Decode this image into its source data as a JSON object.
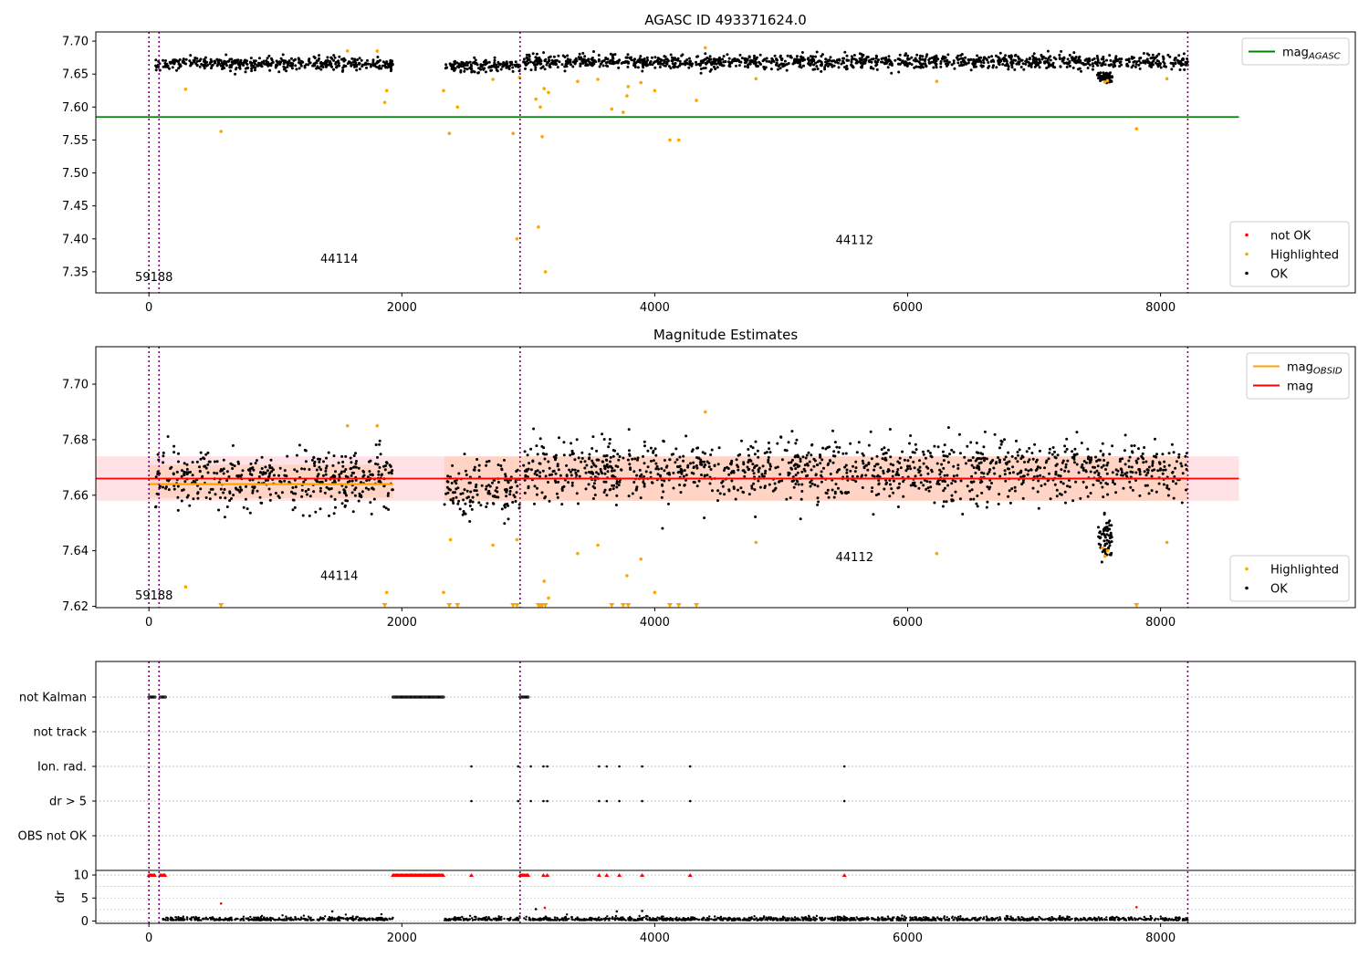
{
  "chart_data": [
    {
      "type": "scatter",
      "title": "AGASC ID 493371624.0",
      "xlim": [
        -420,
        9540
      ],
      "ylim": [
        7.318,
        7.714
      ],
      "x_ticks": [
        0,
        2000,
        4000,
        6000,
        8000
      ],
      "y_ticks": [
        7.35,
        7.4,
        7.45,
        7.5,
        7.55,
        7.6,
        7.65,
        7.7
      ],
      "obsid_boundaries": [
        0,
        80,
        2935,
        8215
      ],
      "obsid_labels": [
        {
          "text": "59188",
          "x": 40,
          "y": 7.336
        },
        {
          "text": "44114",
          "x": 1505,
          "y": 7.364
        },
        {
          "text": "44112",
          "x": 5580,
          "y": 7.392
        }
      ],
      "lines": [
        {
          "name": "mag",
          "subscript": "AGASC",
          "value": 7.585,
          "x_range": [
            -420,
            8620
          ],
          "color": "#008000"
        }
      ],
      "ok_segments": [
        {
          "x": [
            50,
            90
          ],
          "center": 7.665,
          "spread": 0.01
        },
        {
          "x": [
            110,
            1930
          ],
          "center": 7.666,
          "spread": 0.011
        },
        {
          "x": [
            2335,
            2935
          ],
          "center": 7.662,
          "spread": 0.011
        },
        {
          "x": [
            2960,
            8215
          ],
          "center": 7.669,
          "spread": 0.012
        }
      ],
      "dip": {
        "x": [
          7500,
          7620
        ],
        "center": 7.645
      },
      "highlighted_points": [
        [
          290,
          7.627
        ],
        [
          570,
          7.563
        ],
        [
          1570,
          7.685
        ],
        [
          1805,
          7.685
        ],
        [
          1865,
          7.607
        ],
        [
          1880,
          7.625
        ],
        [
          2330,
          7.625
        ],
        [
          2375,
          7.56
        ],
        [
          2440,
          7.6
        ],
        [
          2720,
          7.642
        ],
        [
          2880,
          7.56
        ],
        [
          2910,
          7.4
        ],
        [
          2930,
          7.645
        ],
        [
          3060,
          7.612
        ],
        [
          3080,
          7.418
        ],
        [
          3095,
          7.6
        ],
        [
          3110,
          7.555
        ],
        [
          3125,
          7.628
        ],
        [
          3135,
          7.35
        ],
        [
          3160,
          7.622
        ],
        [
          3390,
          7.639
        ],
        [
          3550,
          7.642
        ],
        [
          3660,
          7.597
        ],
        [
          3750,
          7.592
        ],
        [
          3780,
          7.617
        ],
        [
          3790,
          7.631
        ],
        [
          3890,
          7.637
        ],
        [
          4000,
          7.625
        ],
        [
          4120,
          7.55
        ],
        [
          4190,
          7.55
        ],
        [
          4330,
          7.61
        ],
        [
          4400,
          7.69
        ],
        [
          4800,
          7.643
        ],
        [
          6230,
          7.639
        ],
        [
          7560,
          7.638
        ],
        [
          7580,
          7.64
        ],
        [
          7810,
          7.567
        ],
        [
          8050,
          7.643
        ]
      ],
      "legends": [
        {
          "placement": "top-right",
          "entries": [
            {
              "label": "mag",
              "subscript": "AGASC",
              "color": "#008000",
              "kind": "line"
            }
          ]
        },
        {
          "placement": "bottom-right",
          "entries": [
            {
              "label": "not OK",
              "color": "#ff0000",
              "kind": "dot"
            },
            {
              "label": "Highlighted",
              "color": "#ffa500",
              "kind": "dot"
            },
            {
              "label": "OK",
              "color": "#000000",
              "kind": "dot"
            }
          ]
        }
      ]
    },
    {
      "type": "scatter",
      "title": "Magnitude Estimates",
      "xlim": [
        -420,
        9540
      ],
      "ylim": [
        7.6195,
        7.7135
      ],
      "x_ticks": [
        0,
        2000,
        4000,
        6000,
        8000
      ],
      "y_ticks": [
        7.62,
        7.64,
        7.66,
        7.68,
        7.7
      ],
      "obsid_boundaries": [
        0,
        80,
        2935,
        8215
      ],
      "obsid_labels": [
        {
          "text": "59188",
          "x": 40,
          "y": 7.6225
        },
        {
          "text": "44114",
          "x": 1505,
          "y": 7.6295
        },
        {
          "text": "44112",
          "x": 5580,
          "y": 7.6362
        }
      ],
      "bands": [
        {
          "x_range": [
            -420,
            8620
          ],
          "y_range": [
            7.658,
            7.674
          ],
          "color": "#ff8c96",
          "opacity": 0.25
        },
        {
          "x_range": [
            0,
            1930
          ],
          "y_range": [
            7.659,
            7.671
          ],
          "color": "#ffb070",
          "opacity": 0.28
        },
        {
          "x_range": [
            2335,
            8215
          ],
          "y_range": [
            7.658,
            7.674
          ],
          "color": "#ffb070",
          "opacity": 0.28
        }
      ],
      "lines": [
        {
          "name": "mag",
          "subscript": "OBSID",
          "value": 7.664,
          "x_range": [
            0,
            1930
          ],
          "color": "#ffa500"
        },
        {
          "name": "mag",
          "subscript": "OBSID",
          "value": 7.666,
          "x_range": [
            2335,
            8215
          ],
          "color": "#ffa500"
        },
        {
          "name": "mag",
          "value": 7.666,
          "x_range": [
            -420,
            8620
          ],
          "color": "#ff0000"
        }
      ],
      "ok_segments": [
        {
          "x": [
            50,
            90
          ],
          "center": 7.665,
          "spread": 0.01
        },
        {
          "x": [
            110,
            1930
          ],
          "center": 7.666,
          "spread": 0.011
        },
        {
          "x": [
            2335,
            2935
          ],
          "center": 7.662,
          "spread": 0.011
        },
        {
          "x": [
            2960,
            8215
          ],
          "center": 7.669,
          "spread": 0.012
        }
      ],
      "dip": {
        "x": [
          7500,
          7620
        ],
        "center": 7.645
      },
      "highlighted_points": [
        [
          290,
          7.627
        ],
        [
          1570,
          7.685
        ],
        [
          1805,
          7.685
        ],
        [
          1880,
          7.625
        ],
        [
          2330,
          7.625
        ],
        [
          2385,
          7.644
        ],
        [
          2720,
          7.642
        ],
        [
          2910,
          7.644
        ],
        [
          3125,
          7.629
        ],
        [
          3160,
          7.623
        ],
        [
          3390,
          7.639
        ],
        [
          3550,
          7.642
        ],
        [
          3780,
          7.631
        ],
        [
          3890,
          7.637
        ],
        [
          4000,
          7.625
        ],
        [
          4400,
          7.69
        ],
        [
          4800,
          7.643
        ],
        [
          6230,
          7.639
        ],
        [
          7540,
          7.641
        ],
        [
          7560,
          7.638
        ],
        [
          7580,
          7.64
        ],
        [
          8050,
          7.643
        ]
      ],
      "clipped_points_x": [
        570,
        1865,
        2375,
        2440,
        2880,
        2910,
        3080,
        3095,
        3110,
        3135,
        3660,
        3750,
        3790,
        4120,
        4190,
        4330,
        7810
      ],
      "legends": [
        {
          "placement": "top-right",
          "entries": [
            {
              "label": "mag",
              "subscript": "OBSID",
              "color": "#ffa500",
              "kind": "line"
            },
            {
              "label": "mag",
              "color": "#ff0000",
              "kind": "line"
            }
          ]
        },
        {
          "placement": "bottom-right",
          "entries": [
            {
              "label": "Highlighted",
              "color": "#ffa500",
              "kind": "dot"
            },
            {
              "label": "OK",
              "color": "#000000",
              "kind": "dot"
            }
          ]
        }
      ]
    },
    {
      "type": "scatter",
      "title": "",
      "xlim": [
        -420,
        9540
      ],
      "x_ticks": [
        0,
        2000,
        4000,
        6000,
        8000
      ],
      "obsid_boundaries": [
        0,
        80,
        2935,
        8215
      ],
      "flag_rows": [
        "not Kalman",
        "not track",
        "Ion. rad.",
        "dr > 5",
        "OBS not OK"
      ],
      "flag_ranges": {
        "not Kalman": [
          [
            0,
            50
          ],
          [
            90,
            130
          ],
          [
            1930,
            2330
          ],
          [
            2935,
            3000
          ]
        ],
        "not track": [],
        "Ion. rad.": [],
        "dr > 5": [],
        "OBS not OK": []
      },
      "flag_points": {
        "Ion. rad.": [
          2550,
          2920,
          3020,
          3120,
          3150,
          3560,
          3620,
          3720,
          3900,
          4280,
          5500
        ],
        "dr > 5": [
          2550,
          2920,
          3020,
          3120,
          3150,
          3560,
          3620,
          3720,
          3900,
          4280,
          5500
        ]
      },
      "dr_ylabel": "dr",
      "dr_ylim": [
        -0.5,
        11
      ],
      "dr_ticks": [
        0,
        5,
        10
      ],
      "dr_clipped_x_ranges": [
        [
          0,
          50
        ],
        [
          90,
          130
        ],
        [
          1930,
          2330
        ],
        [
          2935,
          3000
        ]
      ],
      "dr_clipped_points_x": [
        2550,
        3120,
        3150,
        3560,
        3620,
        3720,
        3900,
        4280,
        5500
      ],
      "dr_outliers": [
        [
          570,
          3.8
        ],
        [
          1450,
          2.1
        ],
        [
          3060,
          2.6
        ],
        [
          3130,
          2.9
        ],
        [
          3700,
          2.1
        ],
        [
          3900,
          2.2
        ],
        [
          7810,
          3.0
        ]
      ]
    }
  ]
}
